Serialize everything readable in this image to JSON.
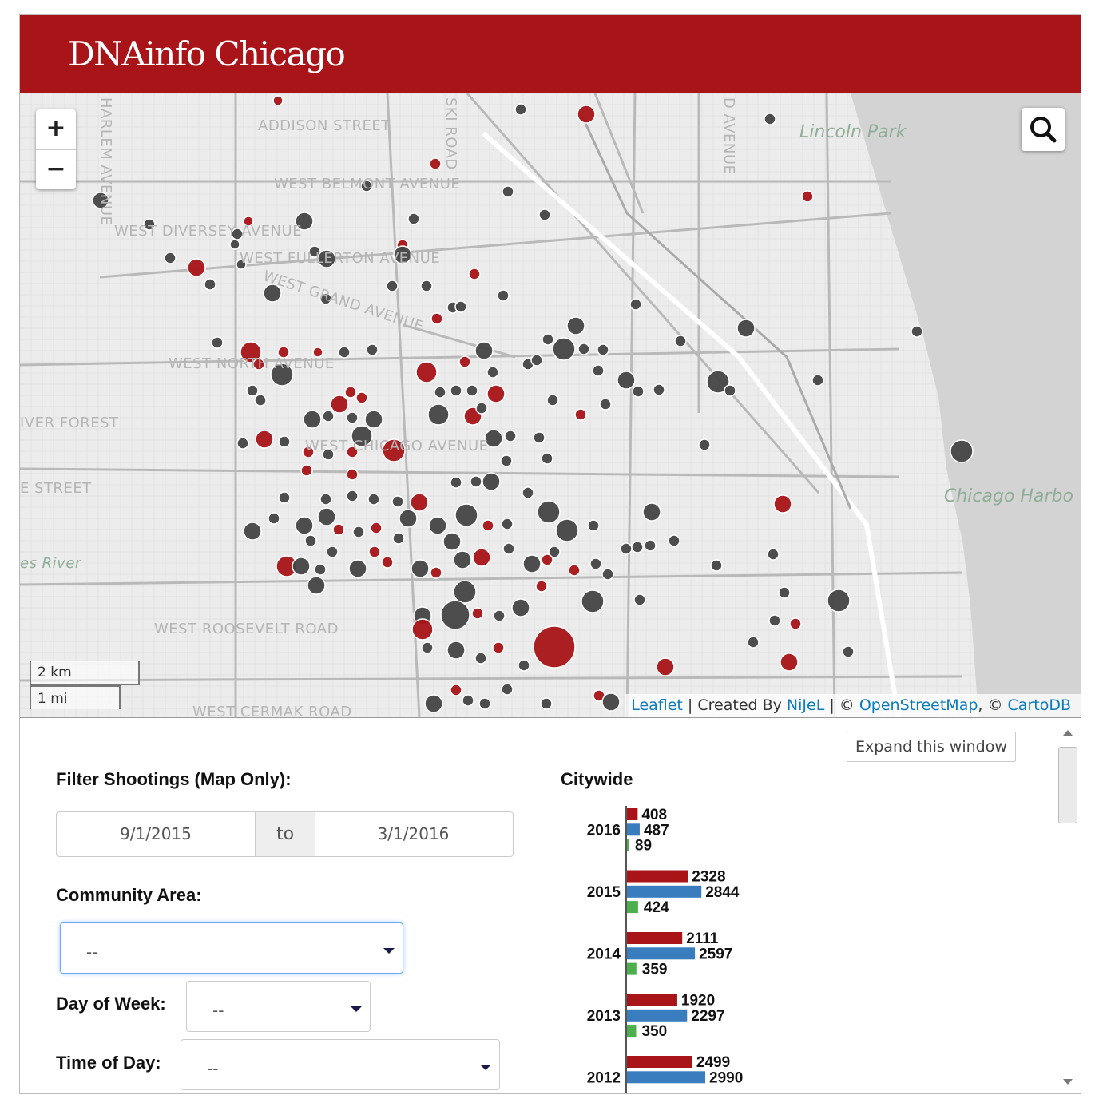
{
  "header": {
    "logo": "DNAinfo Chicago",
    "brand_color": "#a81417"
  },
  "map": {
    "zoom_in": "+",
    "zoom_out": "−",
    "search_icon": "magnifier-icon",
    "street_labels": [
      "ADDISON STREET",
      "WEST BELMONT AVENUE",
      "WEST DIVERSEY AVENUE",
      "WEST FULLERTON AVENUE",
      "WEST GRAND AVENUE",
      "WEST NORTH AVENUE",
      "WEST CHICAGO AVENUE",
      "WEST ROOSEVELT ROAD",
      "WEST CERMAK ROAD",
      "IVER FOREST",
      "E STREET",
      "es River",
      "HARLEM AVENUE",
      "SKI ROAD",
      "D AVENUE"
    ],
    "park_labels": [
      "Lincoln Park",
      "Chicago Harbo"
    ],
    "scale": {
      "km": "2 km",
      "mi": "1 mi"
    },
    "attribution": {
      "leaflet": "Leaflet",
      "sep1": " | Created By ",
      "nijel": "NiJeL",
      "sep2": " | © ",
      "osm": "OpenStreetMap",
      "sep3": ", © ",
      "carto": "CartoDB"
    },
    "marker_colors": {
      "dark": "#444444",
      "red": "#a81417"
    }
  },
  "panel": {
    "expand_button": "Expand this window",
    "filter_title": "Filter Shootings (Map Only):",
    "date_from": "9/1/2015",
    "date_to_label": "to",
    "date_to": "3/1/2016",
    "community_label": "Community Area:",
    "community_value": "--",
    "day_label": "Day of Week:",
    "day_value": "--",
    "time_label": "Time of Day:",
    "time_value": "--"
  },
  "chart_data": {
    "type": "bar",
    "orientation": "horizontal",
    "title": "Citywide",
    "categories": [
      "2016",
      "2015",
      "2014",
      "2013",
      "2012"
    ],
    "series": [
      {
        "color": "#a81417",
        "values": [
          408,
          2328,
          2111,
          1920,
          2499
        ]
      },
      {
        "color": "#3a7dbf",
        "values": [
          487,
          2844,
          2597,
          2297,
          2990
        ]
      },
      {
        "color": "#4cae4c",
        "values": [
          89,
          424,
          359,
          350,
          null
        ]
      }
    ]
  }
}
